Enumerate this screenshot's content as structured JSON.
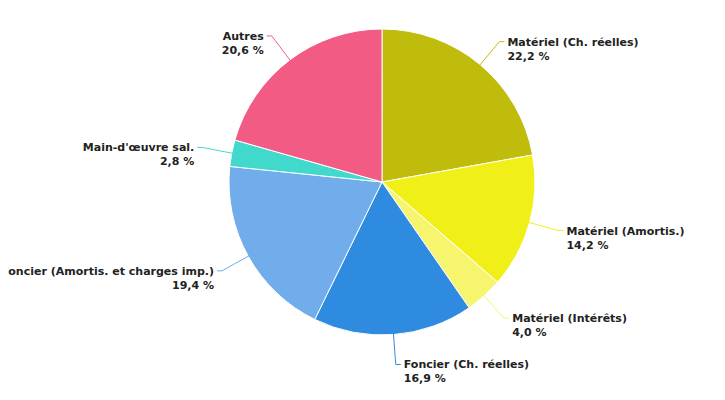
{
  "chart_data": {
    "type": "pie",
    "categories": [
      "Matériel (Ch. réelles)",
      "Matériel (Amortis.)",
      "Matériel (Intérêts)",
      "Foncier (Ch. réelles)",
      "Foncier (Amortis. et charges imp.)",
      "Main-d'œuvre sal.",
      "Autres"
    ],
    "values": [
      22.2,
      14.2,
      4.0,
      16.9,
      19.4,
      2.8,
      20.6
    ],
    "value_labels": [
      "22,2 %",
      "14,2 %",
      "4,0 %",
      "16,9 %",
      "19,4 %",
      "2,8 %",
      "20,6 %"
    ],
    "colors": [
      "#bfbc0b",
      "#f0f018",
      "#f7f56e",
      "#2e8be0",
      "#72adeb",
      "#40d9cc",
      "#f25c84"
    ],
    "data_labels": true
  }
}
